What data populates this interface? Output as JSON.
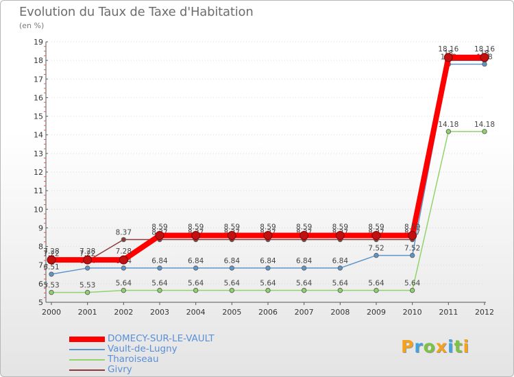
{
  "chart_data": {
    "type": "line",
    "title": "Evolution du Taux de Taxe d'Habitation",
    "subtitle": "(en %)",
    "xlabel": "",
    "ylabel": "",
    "x": [
      "2000",
      "2001",
      "2002",
      "2003",
      "2004",
      "2005",
      "2006",
      "2007",
      "2008",
      "2009",
      "2010",
      "2011",
      "2012"
    ],
    "ylim": [
      5,
      19
    ],
    "yticks": [
      5,
      6,
      7,
      8,
      9,
      10,
      11,
      12,
      13,
      14,
      15,
      16,
      17,
      18,
      19
    ],
    "series": [
      {
        "name": "Givry",
        "color": "#8b3a3a",
        "values": [
          7.22,
          7.22,
          8.37,
          8.37,
          8.37,
          8.37,
          8.37,
          8.37,
          8.37,
          8.37,
          8.37,
          18.0,
          18.0
        ],
        "labels": [
          "7.22",
          "7.22",
          "8.37",
          "8.37",
          "8.37",
          "8.37",
          "8.37",
          "8.37",
          "8.37",
          "8.37",
          "8.37",
          "18",
          "18"
        ]
      },
      {
        "name": "Vault-de-Lugny",
        "color": "#5b95c9",
        "values": [
          6.51,
          6.84,
          6.84,
          6.84,
          6.84,
          6.84,
          6.84,
          6.84,
          6.84,
          7.52,
          7.52,
          17.8,
          17.8
        ],
        "labels": [
          "6.51",
          "6.84",
          "6.84",
          "6.84",
          "6.84",
          "6.84",
          "6.84",
          "6.84",
          "6.84",
          "7.52",
          "7.52",
          "17.8",
          "17.8"
        ]
      },
      {
        "name": "Tharoiseau",
        "color": "#8fd46a",
        "values": [
          5.53,
          5.53,
          5.64,
          5.64,
          5.64,
          5.64,
          5.64,
          5.64,
          5.64,
          5.64,
          5.64,
          14.18,
          14.18
        ],
        "labels": [
          "5.53",
          "5.53",
          "5.64",
          "5.64",
          "5.64",
          "5.64",
          "5.64",
          "5.64",
          "5.64",
          "5.64",
          "5.64",
          "14.18",
          "14.18"
        ]
      },
      {
        "name": "DOMECY-SUR-LE-VAULT",
        "color": "#ff0000",
        "values": [
          7.28,
          7.28,
          7.28,
          8.59,
          8.59,
          8.59,
          8.59,
          8.59,
          8.59,
          8.59,
          8.59,
          18.16,
          18.16
        ],
        "labels": [
          "7.28",
          "7.28",
          "7.28",
          "8.59",
          "8.59",
          "8.59",
          "8.59",
          "8.59",
          "8.59",
          "8.59",
          "8.59",
          "18.16",
          "18.16"
        ]
      }
    ],
    "legend": [
      "DOMECY-SUR-LE-VAULT",
      "Vault-de-Lugny",
      "Tharoiseau",
      "Givry"
    ],
    "legend_position": "bottom-left"
  },
  "logo": {
    "letters": [
      "P",
      "r",
      "o",
      "x",
      "i",
      "t",
      "i"
    ],
    "colors": [
      "#f5a21c",
      "#3fa3e0",
      "#7cc243",
      "#f5a21c",
      "#3fa3e0",
      "#7cc243",
      "#f5a21c"
    ]
  }
}
